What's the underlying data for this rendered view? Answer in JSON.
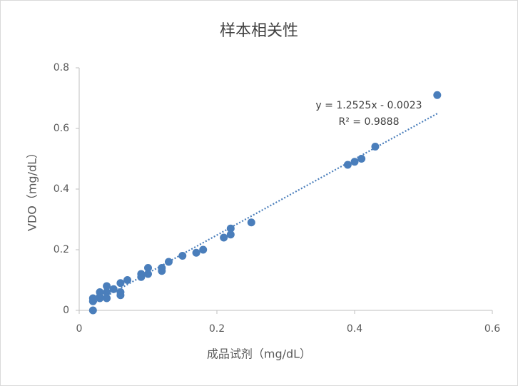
{
  "chart_data": {
    "type": "scatter",
    "title": "样本相关性",
    "x_label": "成品试剂（mg/dL）",
    "y_label": "VDO（mg/dL）",
    "color": "#4a7ebb",
    "x": [
      0.02,
      0.02,
      0.02,
      0.03,
      0.03,
      0.03,
      0.04,
      0.04,
      0.04,
      0.05,
      0.06,
      0.06,
      0.06,
      0.07,
      0.09,
      0.09,
      0.1,
      0.1,
      0.12,
      0.12,
      0.13,
      0.15,
      0.17,
      0.18,
      0.21,
      0.22,
      0.22,
      0.25,
      0.39,
      0.4,
      0.41,
      0.43,
      0.52
    ],
    "values": [
      0,
      0.03,
      0.04,
      0.045,
      0.06,
      0.04,
      0.08,
      0.04,
      0.06,
      0.07,
      0.09,
      0.06,
      0.05,
      0.1,
      0.12,
      0.11,
      0.14,
      0.12,
      0.14,
      0.13,
      0.16,
      0.18,
      0.19,
      0.2,
      0.24,
      0.25,
      0.27,
      0.29,
      0.48,
      0.49,
      0.5,
      0.54,
      0.71
    ],
    "xlim": [
      0,
      0.6
    ],
    "ylim": [
      0,
      0.8
    ],
    "xticks": [
      0,
      0.2,
      0.4,
      0.6
    ],
    "yticks": [
      0,
      0.2,
      0.4,
      0.6,
      0.8
    ],
    "grid": false,
    "trendline": {
      "equation": "y = 1.2525x - 0.0023",
      "r_squared": "R² = 0.9888",
      "slope": 1.2525,
      "intercept": -0.0023
    }
  }
}
